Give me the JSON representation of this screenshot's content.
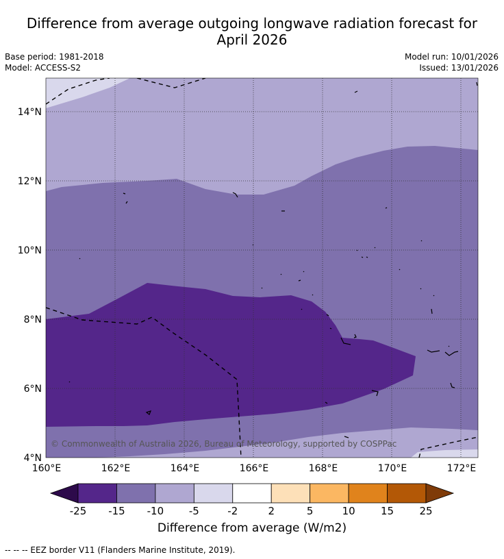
{
  "title_line1": "Difference from average outgoing longwave radiation forecast for",
  "title_line2": "April 2026",
  "base_period": "Base period: 1981-2018",
  "model": "Model: ACCESS-S2",
  "model_run": "Model run: 10/01/2026",
  "issued": "Issued: 13/01/2026",
  "copyright": "© Commonwealth of Australia 2026, Bureau of Meteorology, supported by COSPPac",
  "lon_labels": [
    "160°E",
    "162°E",
    "164°E",
    "166°E",
    "168°E",
    "170°E",
    "172°E"
  ],
  "lat_labels": [
    "14°N",
    "12°N",
    "10°N",
    "8°N",
    "6°N",
    "4°N"
  ],
  "colorbar": {
    "label": "Difference from average (W/m2)",
    "ticks": [
      "-25",
      "-15",
      "-10",
      "-5",
      "-2",
      "2",
      "5",
      "10",
      "15",
      "25"
    ],
    "colors": [
      "#2d0a4b",
      "#54268a",
      "#7f71ad",
      "#afa7d1",
      "#d9d8ec",
      "#ffffff",
      "#fde0b8",
      "#fbb762",
      "#e0831c",
      "#b35806",
      "#7f3b08"
    ]
  },
  "footnote": "--  --  -- EEZ border V11 (Flanders Marine Institute, 2019)."
}
